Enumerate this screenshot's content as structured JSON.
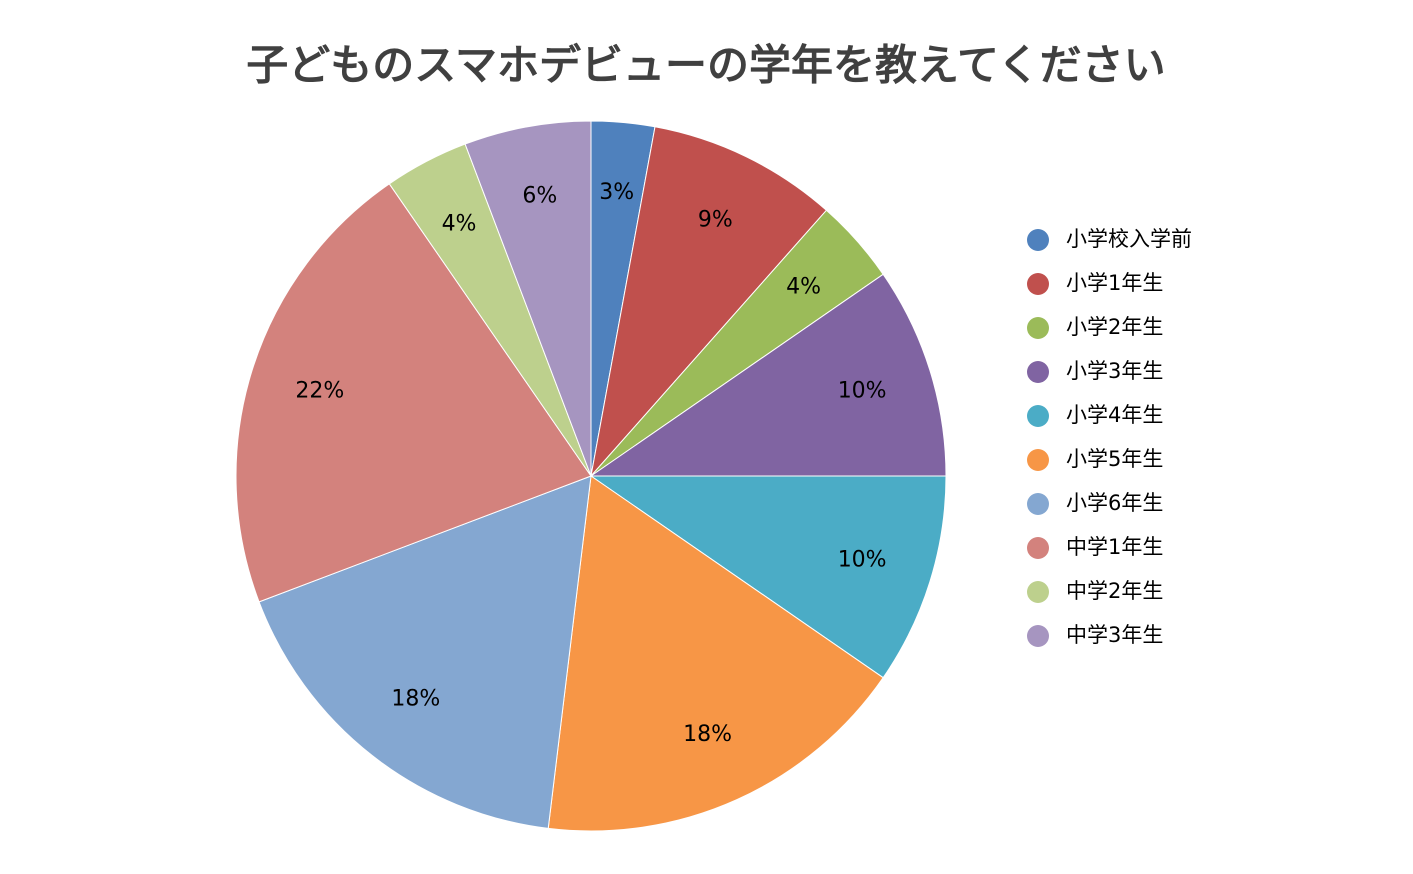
{
  "chart_data": {
    "type": "pie",
    "title": "子どものスマホデビューの学年を教えてください",
    "categories": [
      "小学校入学前",
      "小学1年生",
      "小学2年生",
      "小学3年生",
      "小学4年生",
      "小学5年生",
      "小学6年生",
      "中学1年生",
      "中学2年生",
      "中学3年生"
    ],
    "values": [
      3,
      9,
      4,
      10,
      10,
      18,
      18,
      22,
      4,
      6
    ],
    "value_labels": [
      "3%",
      "9%",
      "4%",
      "10%",
      "10%",
      "18%",
      "18%",
      "22%",
      "4%",
      "6%"
    ],
    "colors": [
      "#4f81bd",
      "#c0504d",
      "#9bbb59",
      "#8064a2",
      "#4bacc6",
      "#f79646",
      "#84a7d1",
      "#d3827d",
      "#bdd08d",
      "#a695c0"
    ],
    "legend": "right"
  }
}
